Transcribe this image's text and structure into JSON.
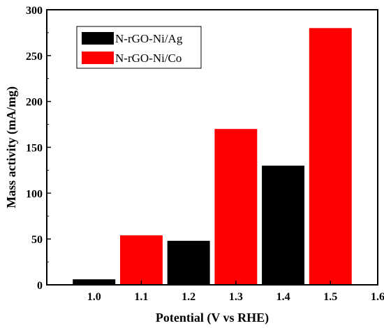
{
  "chart_data": {
    "type": "bar",
    "xlabel": "Potential (V vs RHE)",
    "ylabel": "Mass activity (mA/mg)",
    "xlim": [
      0.9,
      1.6
    ],
    "ylim": [
      0,
      300
    ],
    "xticks": [
      "1.0",
      "1.1",
      "1.2",
      "1.3",
      "1.4",
      "1.5",
      "1.6"
    ],
    "yticks": [
      "0",
      "50",
      "100",
      "150",
      "200",
      "250",
      "300"
    ],
    "categories": [
      "1.0",
      "1.1",
      "1.2",
      "1.3",
      "1.4",
      "1.5"
    ],
    "series": [
      {
        "name": "N-rGO-Ni/Ag",
        "color": "#000000",
        "x": [
          1.0,
          1.2,
          1.4
        ],
        "values": [
          6,
          48,
          130
        ]
      },
      {
        "name": "N-rGO-Ni/Co",
        "color": "#ff0000",
        "x": [
          1.1,
          1.3,
          1.5
        ],
        "values": [
          54,
          170,
          280
        ]
      }
    ],
    "legend": "top-left",
    "grid": false
  }
}
